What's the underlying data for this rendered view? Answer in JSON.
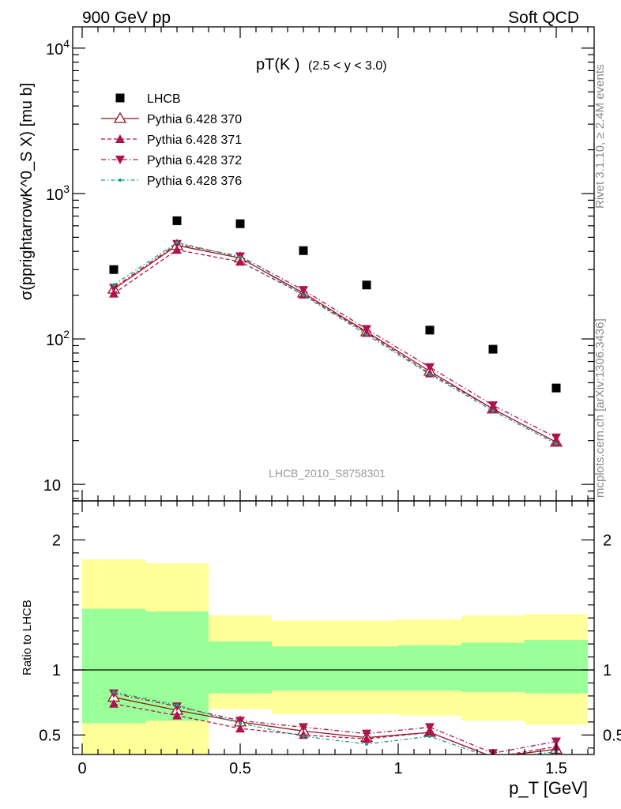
{
  "header": {
    "left": "900 GeV pp",
    "right": "Soft QCD"
  },
  "side_labels": {
    "top": "Rivet 3.1.10, ≥ 2.4M events",
    "bottom": "mcplots.cern.ch [arXiv:1306.3436]"
  },
  "watermark": "LHCB_2010_S8758301",
  "plot_title": {
    "main": "pT(K )",
    "range": "(2.5 < y < 3.0)"
  },
  "colors": {
    "data": "#000000",
    "py370": "#8b1a1a",
    "py371": "#b0124e",
    "py372": "#b0124e",
    "py376": "#1b9e8a",
    "band_inner": "#99ff99",
    "band_outer": "#ffff99"
  },
  "chart_data": [
    {
      "type": "scatter",
      "panel": "main",
      "ylabel": "σ(pprightarrowK^0_S X) [mu b]",
      "xlabel": "",
      "xlim": [
        -0.03,
        1.62
      ],
      "ylim": [
        7.7,
        14000
      ],
      "log_y": true,
      "y_tick_labels": [
        "10",
        "10^2",
        "10^3",
        "10^4"
      ],
      "legend_position": "top-left",
      "x": [
        0.1,
        0.3,
        0.5,
        0.7,
        0.9,
        1.1,
        1.3,
        1.5
      ],
      "series": [
        {
          "name": "LHCB",
          "key": "data",
          "style": "square",
          "values": [
            300,
            650,
            620,
            405,
            235,
            115,
            85,
            46
          ]
        },
        {
          "name": "Pythia 6.428 370",
          "key": "py370",
          "style": "solid-open-triangle",
          "values": [
            220,
            440,
            360,
            207,
            112,
            60,
            33,
            19.5
          ]
        },
        {
          "name": "Pythia 6.428 371",
          "key": "py371",
          "style": "dashed-triangle",
          "values": [
            205,
            410,
            340,
            202,
            110,
            58,
            33,
            19.5
          ]
        },
        {
          "name": "Pythia 6.428 372",
          "key": "py372",
          "style": "dashdot-inverted-triangle",
          "values": [
            225,
            450,
            370,
            217,
            117,
            64,
            35,
            21
          ]
        },
        {
          "name": "Pythia 6.428 376",
          "key": "py376",
          "style": "dashdot-dot",
          "values": [
            235,
            460,
            365,
            200,
            107,
            57,
            32,
            19
          ]
        }
      ]
    },
    {
      "type": "line",
      "panel": "ratio",
      "ylabel": "Ratio to LHCB",
      "xlabel": "p_T [GeV]",
      "xlim": [
        -0.03,
        1.62
      ],
      "ylim": [
        0.35,
        2.3
      ],
      "x_tick_labels": [
        "0",
        "0.5",
        "1",
        "1.5"
      ],
      "y_tick_labels": [
        "0.5",
        "1",
        "2"
      ],
      "reference_line": 1,
      "bands": [
        {
          "x_low": 0.0,
          "x_high": 0.2,
          "inner": [
            0.59,
            1.47
          ],
          "outer": [
            0.35,
            1.85
          ]
        },
        {
          "x_low": 0.2,
          "x_high": 0.4,
          "inner": [
            0.61,
            1.45
          ],
          "outer": [
            0.35,
            1.82
          ]
        },
        {
          "x_low": 0.4,
          "x_high": 0.6,
          "inner": [
            0.82,
            1.22
          ],
          "outer": [
            0.7,
            1.42
          ]
        },
        {
          "x_low": 0.6,
          "x_high": 0.8,
          "inner": [
            0.84,
            1.18
          ],
          "outer": [
            0.66,
            1.38
          ]
        },
        {
          "x_low": 0.8,
          "x_high": 1.0,
          "inner": [
            0.84,
            1.18
          ],
          "outer": [
            0.66,
            1.38
          ]
        },
        {
          "x_low": 1.0,
          "x_high": 1.2,
          "inner": [
            0.84,
            1.19
          ],
          "outer": [
            0.65,
            1.39
          ]
        },
        {
          "x_low": 1.2,
          "x_high": 1.4,
          "inner": [
            0.83,
            1.21
          ],
          "outer": [
            0.61,
            1.42
          ]
        },
        {
          "x_low": 1.4,
          "x_high": 1.6,
          "inner": [
            0.82,
            1.23
          ],
          "outer": [
            0.58,
            1.43
          ]
        }
      ],
      "x": [
        0.1,
        0.3,
        0.5,
        0.7,
        0.9,
        1.1,
        1.3,
        1.5
      ],
      "series": [
        {
          "name": "Pythia 6.428 370",
          "key": "py370",
          "values": [
            0.79,
            0.69,
            0.6,
            0.53,
            0.48,
            0.52,
            0.33,
            0.39
          ]
        },
        {
          "name": "Pythia 6.428 371",
          "key": "py371",
          "values": [
            0.74,
            0.65,
            0.55,
            0.5,
            0.47,
            0.52,
            0.33,
            0.41
          ]
        },
        {
          "name": "Pythia 6.428 372",
          "key": "py372",
          "values": [
            0.82,
            0.72,
            0.61,
            0.56,
            0.51,
            0.56,
            0.36,
            0.45
          ]
        },
        {
          "name": "Pythia 6.428 376",
          "key": "py376",
          "values": [
            0.83,
            0.73,
            0.59,
            0.49,
            0.43,
            0.49,
            0.32,
            0.37
          ]
        }
      ]
    }
  ]
}
